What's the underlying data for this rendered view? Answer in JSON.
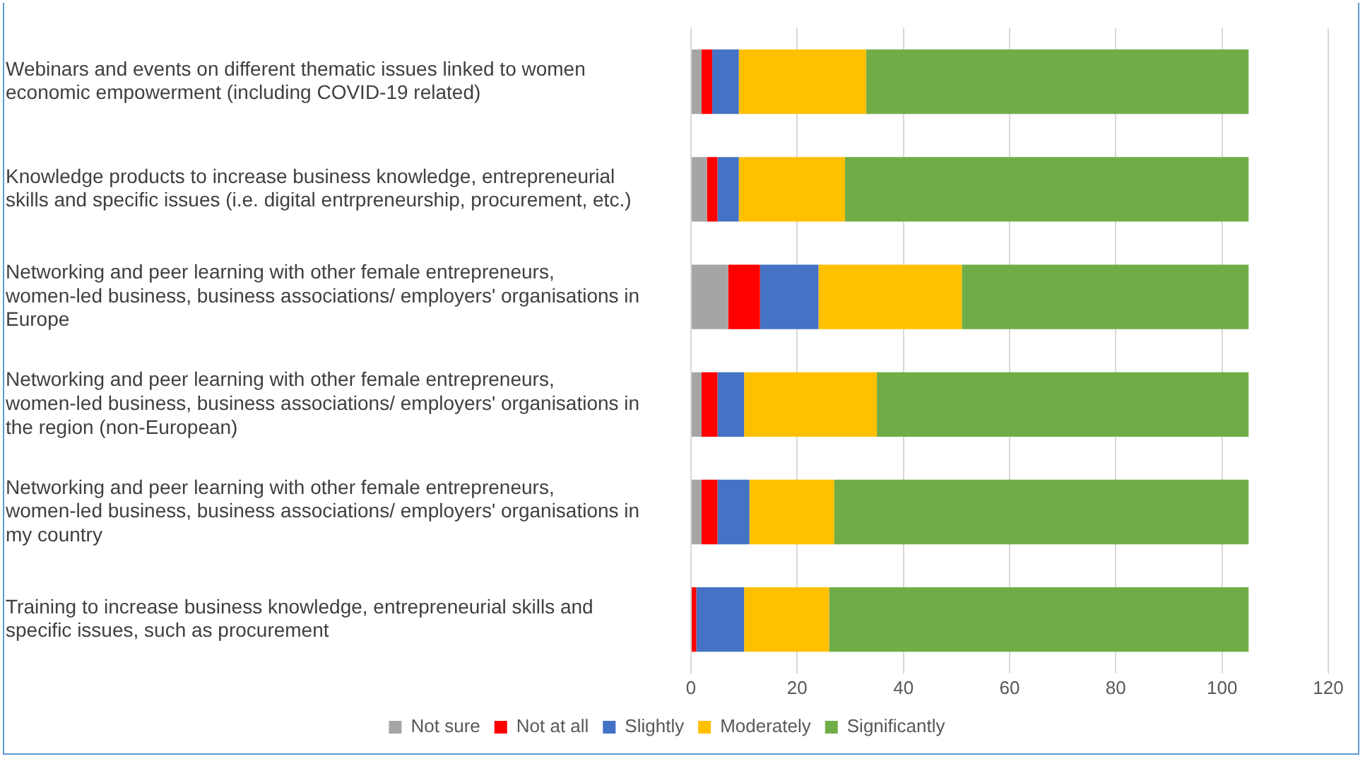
{
  "chart_data": {
    "type": "bar",
    "orientation": "horizontal",
    "stacked": true,
    "categories": [
      "Webinars and events on different thematic issues linked to women economic empowerment (including COVID-19 related)",
      "Knowledge products to increase business knowledge, entrepreneurial skills and specific issues (i.e. digital entrpreneurship, procurement, etc.)",
      "Networking and peer learning with other female entrepreneurs, women-led business, business associations/ employers' organisations in Europe",
      "Networking and peer learning with other female entrepreneurs, women-led business, business associations/ employers' organisations in the region (non-European)",
      "Networking and peer learning with other female entrepreneurs, women-led business, business associations/ employers' organisations in my country",
      "Training to increase business knowledge, entrepreneurial skills and specific issues, such as procurement"
    ],
    "series": [
      {
        "name": "Not sure",
        "color": "#a5a5a5",
        "values": [
          2,
          3,
          7,
          2,
          2,
          0
        ]
      },
      {
        "name": "Not at all",
        "color": "#ff0000",
        "values": [
          2,
          2,
          6,
          3,
          3,
          1
        ]
      },
      {
        "name": "Slightly",
        "color": "#4472c4",
        "values": [
          5,
          4,
          11,
          5,
          6,
          9
        ]
      },
      {
        "name": "Moderately",
        "color": "#ffc000",
        "values": [
          24,
          20,
          27,
          25,
          16,
          16
        ]
      },
      {
        "name": "Significantly",
        "color": "#70ad47",
        "values": [
          72,
          76,
          54,
          70,
          78,
          79
        ]
      }
    ],
    "xlim": [
      0,
      120
    ],
    "xticks": [
      0,
      20,
      40,
      60,
      80,
      100,
      120
    ],
    "grid": "x",
    "legend": "bottom"
  }
}
